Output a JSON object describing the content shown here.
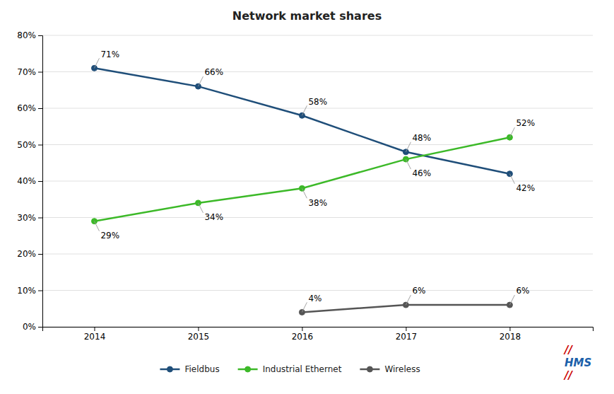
{
  "chart_data": {
    "type": "line",
    "title": "Network market shares",
    "x": [
      2014,
      2015,
      2016,
      2017,
      2018
    ],
    "xlim": [
      2013.5,
      2018.8
    ],
    "xticks": [
      2014,
      2015,
      2016,
      2017,
      2018
    ],
    "ylim": [
      0,
      80
    ],
    "yticks": [
      {
        "value": 0,
        "label": "0%"
      },
      {
        "value": 10,
        "label": "10%"
      },
      {
        "value": 20,
        "label": "20%"
      },
      {
        "value": 30,
        "label": "30%"
      },
      {
        "value": 40,
        "label": "40%"
      },
      {
        "value": 50,
        "label": "50%"
      },
      {
        "value": 60,
        "label": "60%"
      },
      {
        "value": 70,
        "label": "70%"
      },
      {
        "value": 80,
        "label": "80%"
      }
    ],
    "grid": true,
    "legend": "bottom",
    "data_labels": true,
    "marker": "circle",
    "series": [
      {
        "name": "Fieldbus",
        "color": "#1F4E79",
        "values": [
          71,
          66,
          58,
          48,
          42
        ],
        "value_labels": [
          "71%",
          "66%",
          "58%",
          "48%",
          "42%"
        ]
      },
      {
        "name": "Industrial Ethernet",
        "color": "#3CB928",
        "values": [
          29,
          34,
          38,
          46,
          52
        ],
        "value_labels": [
          "29%",
          "34%",
          "38%",
          "46%",
          "52%"
        ]
      },
      {
        "name": "Wireless",
        "color": "#555555",
        "values": [
          null,
          null,
          4,
          6,
          6
        ],
        "value_labels": [
          null,
          null,
          "4%",
          "6%",
          "6%"
        ]
      }
    ],
    "annotations": [
      {
        "text": "//",
        "color": "#CC0000"
      },
      {
        "text": "HMS",
        "color": "#1B5FAA"
      },
      {
        "text": "//",
        "color": "#CC0000"
      }
    ]
  }
}
